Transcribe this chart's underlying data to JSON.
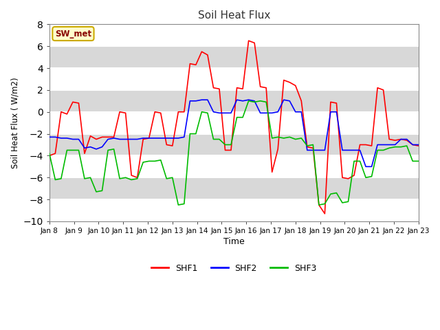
{
  "title": "Soil Heat Flux",
  "xlabel": "Time",
  "ylabel": "Soil Heat Flux ( W/m2)",
  "ylim": [
    -10,
    8
  ],
  "yticks": [
    -10,
    -8,
    -6,
    -4,
    -2,
    0,
    2,
    4,
    6,
    8
  ],
  "annotation": "SW_met",
  "fig_bg": "#ffffff",
  "plot_bg": "#d8d8d8",
  "grid_color": "#ffffff",
  "colors": {
    "SHF1": "#ff0000",
    "SHF2": "#0000ff",
    "SHF3": "#00bb00"
  },
  "x_labels": [
    "Jan 8",
    "Jan 9",
    "Jan 10",
    "Jan 11",
    "Jan 12",
    "Jan 13",
    "Jan 14",
    "Jan 15",
    "Jan 16",
    "Jan 17",
    "Jan 18",
    "Jan 19",
    "Jan 20",
    "Jan 21",
    "Jan 22",
    "Jan 23"
  ],
  "SHF1": [
    -4.0,
    -3.8,
    0.0,
    -0.2,
    0.9,
    0.8,
    -3.8,
    -2.2,
    -2.5,
    -2.3,
    -2.3,
    -2.3,
    0.0,
    -0.1,
    -5.8,
    -6.0,
    -2.5,
    -2.4,
    0.0,
    -0.1,
    -3.0,
    -3.1,
    0.0,
    0.0,
    4.4,
    4.3,
    5.5,
    5.2,
    2.2,
    2.1,
    -3.5,
    -3.5,
    2.2,
    2.1,
    6.5,
    6.3,
    2.3,
    2.2,
    -5.5,
    -3.4,
    2.9,
    2.7,
    2.4,
    1.0,
    -3.2,
    -3.3,
    -8.5,
    -9.3,
    0.9,
    0.8,
    -6.0,
    -6.1,
    -5.8,
    -3.0,
    -3.0,
    -3.1,
    2.2,
    2.0,
    -2.5,
    -2.6,
    -2.5,
    -2.6,
    -3.0,
    -3.1
  ],
  "SHF2": [
    -2.3,
    -2.3,
    -2.4,
    -2.4,
    -2.5,
    -2.5,
    -3.3,
    -3.2,
    -3.4,
    -3.2,
    -2.5,
    -2.4,
    -2.5,
    -2.5,
    -2.5,
    -2.5,
    -2.4,
    -2.4,
    -2.4,
    -2.4,
    -2.4,
    -2.4,
    -2.4,
    -2.3,
    1.0,
    1.0,
    1.1,
    1.1,
    0.0,
    -0.1,
    -0.1,
    -0.1,
    1.1,
    1.0,
    1.1,
    1.0,
    -0.1,
    -0.1,
    -0.1,
    -0.0,
    1.1,
    1.0,
    0.0,
    0.0,
    -3.5,
    -3.5,
    -3.5,
    -3.5,
    0.0,
    -0.0,
    -3.5,
    -3.5,
    -3.5,
    -3.5,
    -5.0,
    -5.0,
    -3.0,
    -3.0,
    -3.0,
    -3.0,
    -2.5,
    -2.5,
    -3.0,
    -3.0
  ],
  "SHF3": [
    -3.8,
    -6.2,
    -6.1,
    -3.5,
    -3.5,
    -3.5,
    -6.1,
    -6.0,
    -7.3,
    -7.2,
    -3.5,
    -3.4,
    -6.1,
    -6.0,
    -6.2,
    -6.1,
    -4.6,
    -4.5,
    -4.5,
    -4.4,
    -6.1,
    -6.0,
    -8.5,
    -8.4,
    -2.0,
    -2.0,
    0.0,
    -0.1,
    -2.5,
    -2.5,
    -3.0,
    -3.0,
    -0.5,
    -0.5,
    1.0,
    0.9,
    1.0,
    0.9,
    -2.4,
    -2.3,
    -2.4,
    -2.3,
    -2.5,
    -2.4,
    -3.1,
    -3.0,
    -8.5,
    -8.4,
    -7.5,
    -7.4,
    -8.3,
    -8.2,
    -4.5,
    -4.5,
    -6.0,
    -5.9,
    -3.5,
    -3.5,
    -3.3,
    -3.2,
    -3.2,
    -3.1,
    -4.5,
    -4.5
  ]
}
